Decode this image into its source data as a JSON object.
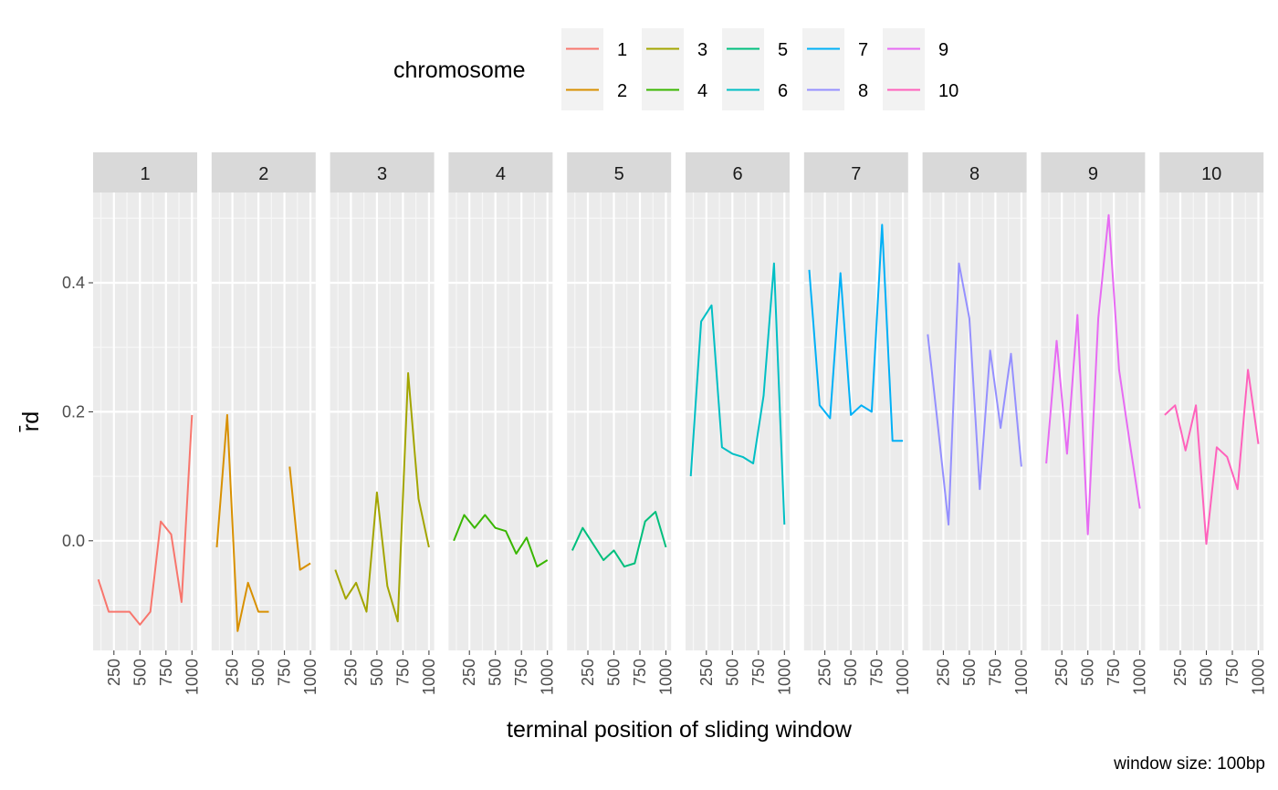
{
  "chart_data": {
    "type": "line",
    "facet_by": "chromosome",
    "legend_title": "chromosome",
    "legend_position": "top",
    "xlabel": "terminal position of sliding window",
    "ylabel": "r̄d",
    "caption": "window size: 100bp",
    "ylim": [
      -0.17,
      0.54
    ],
    "xlim": [
      50,
      1050
    ],
    "y_ticks": [
      "0.0",
      "0.2",
      "0.4"
    ],
    "y_tick_values": [
      0.0,
      0.2,
      0.4
    ],
    "x_tick_values": [
      250,
      500,
      750,
      1000
    ],
    "x_ticks": [
      "250",
      "500",
      "750",
      "1000"
    ],
    "grid": true,
    "x": [
      100,
      200,
      300,
      400,
      500,
      600,
      700,
      800,
      900,
      1000
    ],
    "series": [
      {
        "name": "1",
        "color": "#F8766D",
        "values": [
          -0.06,
          -0.11,
          -0.11,
          -0.11,
          -0.13,
          -0.11,
          0.03,
          0.01,
          -0.095,
          0.195
        ]
      },
      {
        "name": "2",
        "color": "#D89000",
        "values": [
          -0.01,
          0.195,
          -0.14,
          -0.065,
          -0.11,
          -0.11,
          null,
          0.115,
          -0.045,
          -0.035
        ]
      },
      {
        "name": "3",
        "color": "#A3A500",
        "values": [
          -0.045,
          -0.09,
          -0.065,
          -0.11,
          0.075,
          -0.07,
          -0.125,
          0.26,
          0.065,
          -0.01
        ]
      },
      {
        "name": "4",
        "color": "#39B600",
        "values": [
          0.0,
          0.04,
          0.02,
          0.04,
          0.02,
          0.015,
          -0.02,
          0.005,
          -0.04,
          -0.03
        ]
      },
      {
        "name": "5",
        "color": "#00BF7D",
        "values": [
          -0.015,
          0.02,
          -0.005,
          -0.03,
          -0.015,
          -0.04,
          -0.035,
          0.03,
          0.045,
          -0.01
        ]
      },
      {
        "name": "6",
        "color": "#00BFC4",
        "values": [
          0.1,
          0.34,
          0.365,
          0.145,
          0.135,
          0.13,
          0.12,
          0.225,
          0.43,
          0.025
        ]
      },
      {
        "name": "7",
        "color": "#00B0F6",
        "values": [
          0.42,
          0.21,
          0.19,
          0.415,
          0.195,
          0.21,
          0.2,
          0.49,
          0.155,
          0.155
        ]
      },
      {
        "name": "8",
        "color": "#9590FF",
        "values": [
          0.32,
          0.175,
          0.025,
          0.43,
          0.345,
          0.08,
          0.295,
          0.175,
          0.29,
          0.115
        ]
      },
      {
        "name": "9",
        "color": "#E76BF3",
        "values": [
          0.12,
          0.31,
          0.135,
          0.35,
          0.01,
          0.345,
          0.505,
          0.265,
          0.155,
          0.05
        ]
      },
      {
        "name": "10",
        "color": "#FF62BC",
        "values": [
          0.195,
          0.21,
          0.14,
          0.21,
          -0.005,
          0.145,
          0.13,
          0.08,
          0.265,
          0.15
        ]
      }
    ]
  }
}
